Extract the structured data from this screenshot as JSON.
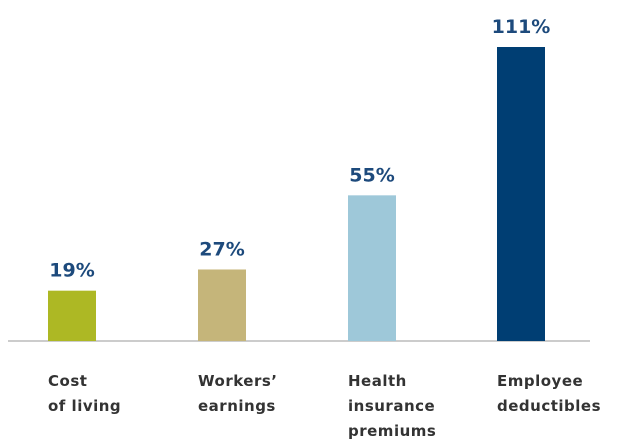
{
  "chart_data": {
    "type": "bar",
    "categories": [
      [
        "Cost",
        "of living"
      ],
      [
        "Workers’",
        "earnings"
      ],
      [
        "Health",
        "insurance",
        "premiums"
      ],
      [
        "Employee",
        "deductibles"
      ]
    ],
    "values": [
      19,
      27,
      55,
      111
    ],
    "value_labels": [
      "19%",
      "27%",
      "55%",
      "111%"
    ],
    "colors": [
      "#adb824",
      "#c5b57a",
      "#9ec8d9",
      "#003e73"
    ]
  }
}
